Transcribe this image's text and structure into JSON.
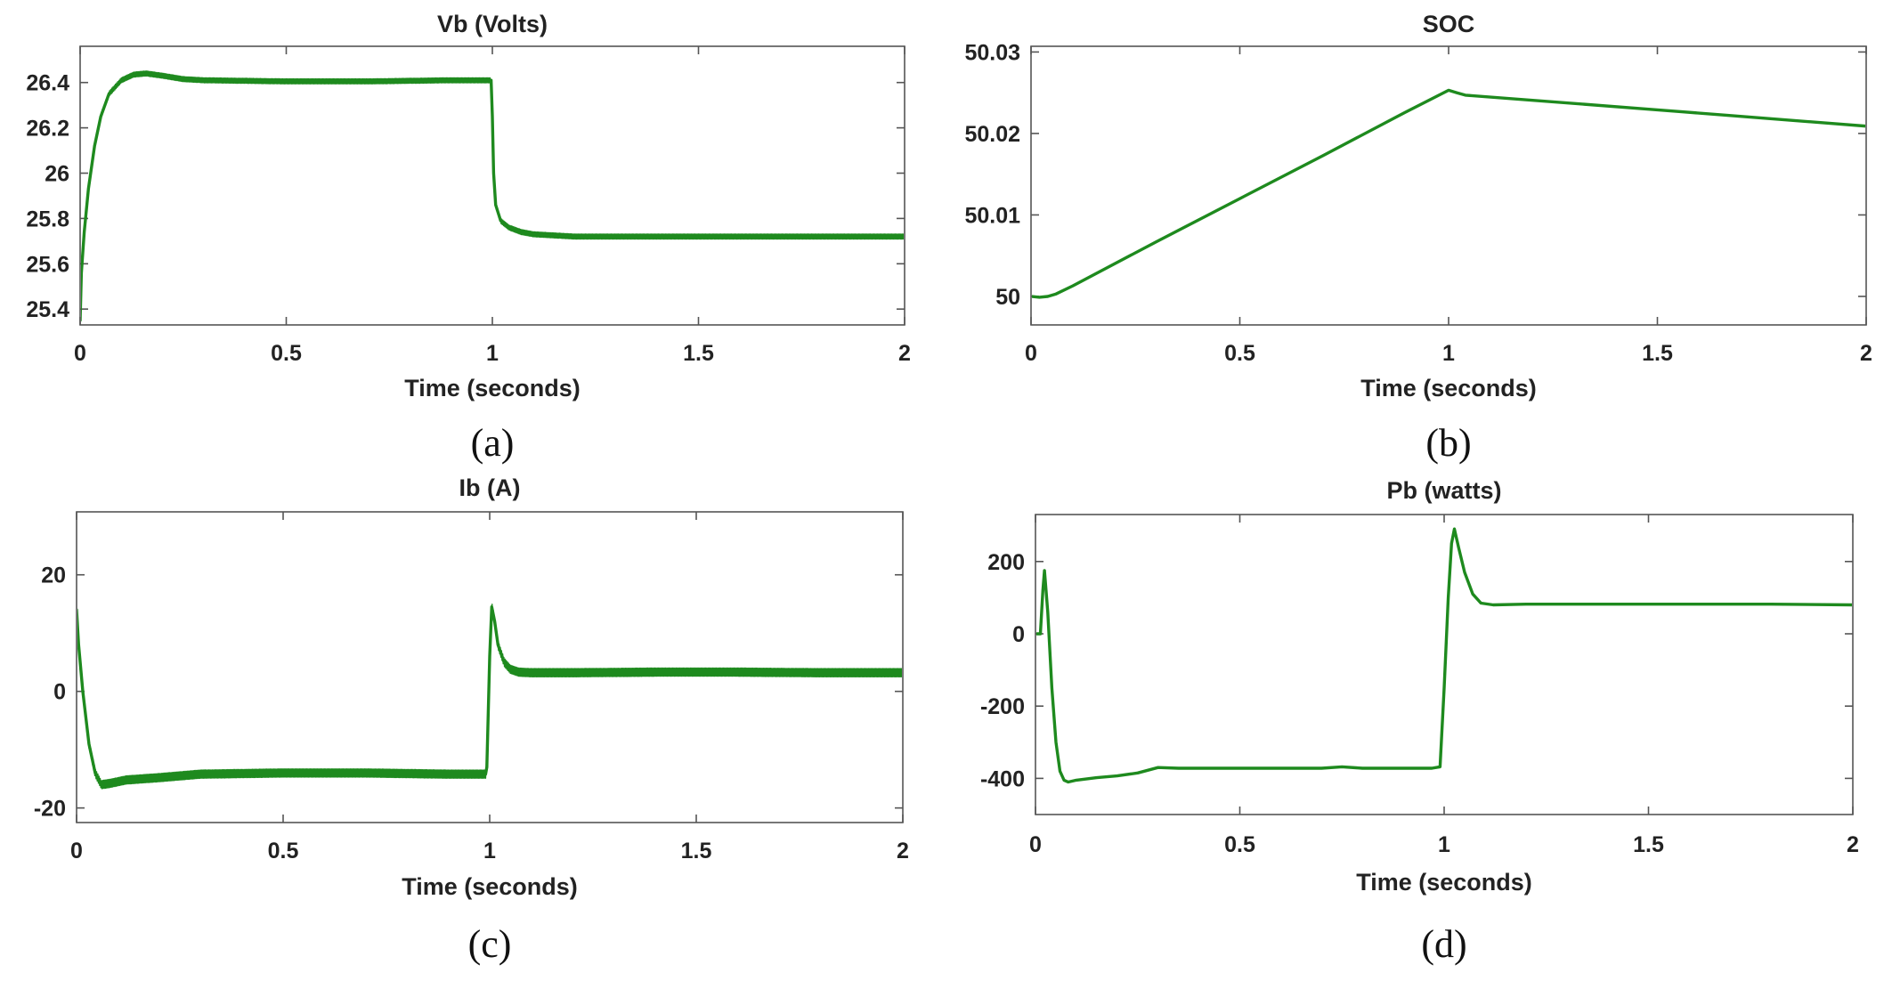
{
  "chart_data": [
    {
      "id": "a",
      "type": "line",
      "title": "Vb (Volts)",
      "xlabel": "Time (seconds)",
      "ylabel": "",
      "caption": "(a)",
      "xlim": [
        0,
        2
      ],
      "ylim": [
        25.33,
        26.56
      ],
      "xticks": [
        0,
        0.5,
        1,
        1.5,
        2
      ],
      "xtick_labels": [
        "0",
        "0.5",
        "1",
        "1.5",
        "2"
      ],
      "yticks": [
        25.4,
        25.6,
        25.8,
        26,
        26.2,
        26.4
      ],
      "ytick_labels": [
        "25.4",
        "25.6",
        "25.8",
        "26",
        "26.2",
        "26.4"
      ],
      "grid": false,
      "color": "#1e8a1e",
      "ripple": 0.022,
      "series": [
        {
          "name": "Vb",
          "x": [
            0,
            0.003,
            0.01,
            0.02,
            0.035,
            0.05,
            0.07,
            0.1,
            0.13,
            0.16,
            0.2,
            0.25,
            0.3,
            0.5,
            0.7,
            0.9,
            0.997,
            1.0,
            1.003,
            1.008,
            1.02,
            1.04,
            1.07,
            1.1,
            1.2,
            1.4,
            1.6,
            1.8,
            2.0
          ],
          "y": [
            25.35,
            25.56,
            25.74,
            25.93,
            26.12,
            26.25,
            26.35,
            26.41,
            26.435,
            26.44,
            26.43,
            26.415,
            26.41,
            26.405,
            26.405,
            26.41,
            26.41,
            26.25,
            26.0,
            25.86,
            25.79,
            25.76,
            25.74,
            25.73,
            25.72,
            25.72,
            25.72,
            25.72,
            25.72
          ]
        }
      ]
    },
    {
      "id": "b",
      "type": "line",
      "title": "SOC",
      "xlabel": "Time (seconds)",
      "ylabel": "",
      "caption": "(b)",
      "xlim": [
        0,
        2
      ],
      "ylim": [
        49.9965,
        50.0307
      ],
      "xticks": [
        0,
        0.5,
        1,
        1.5,
        2
      ],
      "xtick_labels": [
        "0",
        "0.5",
        "1",
        "1.5",
        "2"
      ],
      "yticks": [
        50,
        50.01,
        50.02,
        50.03
      ],
      "ytick_labels": [
        "50",
        "50.01",
        "50.02",
        "50.03"
      ],
      "grid": false,
      "color": "#1e8a1e",
      "ripple": 0,
      "series": [
        {
          "name": "SOC",
          "x": [
            0,
            0.02,
            0.04,
            0.06,
            0.1,
            0.3,
            0.5,
            0.7,
            0.9,
            1.0,
            1.02,
            1.04,
            1.5,
            2.0
          ],
          "y": [
            50.0,
            49.9999,
            50.0,
            50.0003,
            50.0013,
            50.0067,
            50.012,
            50.0173,
            50.0227,
            50.0253,
            50.025,
            50.0247,
            50.0229,
            50.0209
          ]
        }
      ]
    },
    {
      "id": "c",
      "type": "line",
      "title": "Ib (A)",
      "xlabel": "Time (seconds)",
      "ylabel": "",
      "caption": "(c)",
      "xlim": [
        0,
        2
      ],
      "ylim": [
        -22.5,
        30.8
      ],
      "xticks": [
        0,
        0.5,
        1,
        1.5,
        2
      ],
      "xtick_labels": [
        "0",
        "0.5",
        "1",
        "1.5",
        "2"
      ],
      "yticks": [
        -20,
        0,
        20
      ],
      "ytick_labels": [
        "-20",
        "0",
        "20"
      ],
      "grid": false,
      "color": "#1e8a1e",
      "ripple": 1.4,
      "series": [
        {
          "name": "Ib",
          "x": [
            0,
            0.005,
            0.015,
            0.03,
            0.045,
            0.06,
            0.08,
            0.12,
            0.2,
            0.3,
            0.5,
            0.7,
            0.9,
            0.99,
            0.993,
            1.0,
            1.005,
            1.012,
            1.02,
            1.035,
            1.05,
            1.07,
            1.1,
            1.2,
            1.4,
            1.6,
            1.8,
            2.0
          ],
          "y": [
            14,
            8,
            0,
            -9,
            -14,
            -16,
            -15.8,
            -15.2,
            -14.8,
            -14.2,
            -14,
            -14,
            -14.2,
            -14.2,
            -13,
            6,
            14.5,
            12,
            8,
            5,
            3.8,
            3.3,
            3.2,
            3.2,
            3.3,
            3.3,
            3.2,
            3.2
          ]
        }
      ]
    },
    {
      "id": "d",
      "type": "line",
      "title": "Pb (watts)",
      "xlabel": "Time (seconds)",
      "ylabel": "",
      "caption": "(d)",
      "xlim": [
        0,
        2
      ],
      "ylim": [
        -500,
        330
      ],
      "xticks": [
        0,
        0.5,
        1,
        1.5,
        2
      ],
      "xtick_labels": [
        "0",
        "0.5",
        "1",
        "1.5",
        "2"
      ],
      "yticks": [
        -400,
        -200,
        0,
        200
      ],
      "ytick_labels": [
        "-400",
        "-200",
        "0",
        "200"
      ],
      "grid": false,
      "color": "#1e8a1e",
      "ripple": 0,
      "series": [
        {
          "name": "Pb",
          "x": [
            0,
            0.012,
            0.018,
            0.022,
            0.03,
            0.04,
            0.05,
            0.06,
            0.07,
            0.08,
            0.1,
            0.15,
            0.2,
            0.25,
            0.3,
            0.35,
            0.4,
            0.5,
            0.6,
            0.7,
            0.75,
            0.8,
            0.9,
            0.97,
            0.99,
            1.0,
            1.01,
            1.018,
            1.025,
            1.035,
            1.05,
            1.07,
            1.09,
            1.12,
            1.2,
            1.4,
            1.6,
            1.8,
            2.0
          ],
          "y": [
            0,
            0,
            120,
            175,
            60,
            -150,
            -300,
            -380,
            -405,
            -410,
            -405,
            -398,
            -393,
            -385,
            -370,
            -372,
            -372,
            -372,
            -372,
            -372,
            -368,
            -372,
            -372,
            -372,
            -368,
            -150,
            100,
            250,
            290,
            240,
            170,
            110,
            85,
            80,
            82,
            82,
            82,
            82,
            80
          ]
        }
      ]
    }
  ]
}
